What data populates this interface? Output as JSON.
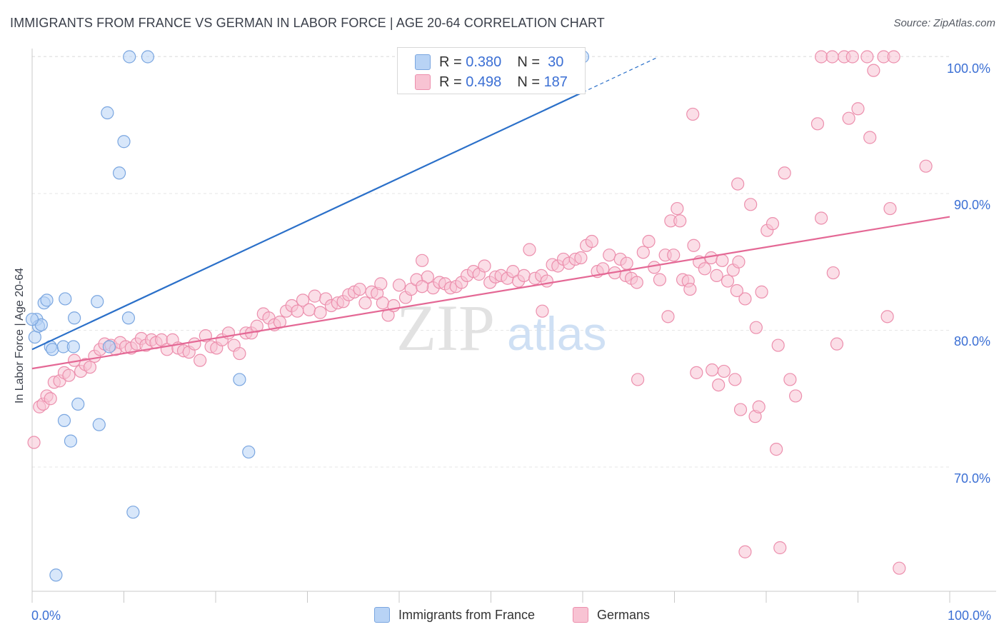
{
  "header": {
    "title": "IMMIGRANTS FROM FRANCE VS GERMAN IN LABOR FORCE | AGE 20-64 CORRELATION CHART",
    "source": "Source: ZipAtlas.com"
  },
  "watermark": {
    "zip": "ZIP",
    "atlas": "atlas"
  },
  "legend": {
    "r_label": "R =",
    "n_label": "N =",
    "series1": {
      "r": "0.380",
      "n": "30"
    },
    "series2": {
      "r": "0.498",
      "n": "187"
    }
  },
  "bottom_legend": {
    "series1": "Immigrants from France",
    "series2": "Germans"
  },
  "colors": {
    "france_fill": "#b8d3f5",
    "france_stroke": "#7aa6e0",
    "france_line": "#2b70c9",
    "german_fill": "#f8c3d3",
    "german_stroke": "#ec8fad",
    "german_line": "#e46895",
    "tick_label": "#3b6fd4",
    "grid": "#e6e6e6"
  },
  "chart_data": {
    "type": "scatter",
    "title": "IMMIGRANTS FROM FRANCE VS GERMAN IN LABOR FORCE | AGE 20-64 CORRELATION CHART",
    "xlabel": "",
    "ylabel": "In Labor Force | Age 20-64",
    "xlim": [
      0,
      100
    ],
    "ylim": [
      60.5,
      101.5
    ],
    "x_tick_labels": [
      "0.0%",
      "100.0%"
    ],
    "y_ticks": [
      70,
      80,
      90,
      100
    ],
    "y_tick_labels": [
      "70.0%",
      "80.0%",
      "90.0%",
      "100.0%"
    ],
    "grid": true,
    "legend_position": "top-center",
    "series": [
      {
        "name": "Immigrants from France",
        "r": 0.38,
        "n": 30,
        "trend": {
          "x0": 0,
          "y0": 78.6,
          "x1": 60,
          "y1": 97.4,
          "dashed_to_x": 68
        },
        "points": [
          [
            0.3,
            79.5
          ],
          [
            0.5,
            80.8
          ],
          [
            0.7,
            80.3
          ],
          [
            1.0,
            80.4
          ],
          [
            1.3,
            82.0
          ],
          [
            1.6,
            82.2
          ],
          [
            2.0,
            78.8
          ],
          [
            2.2,
            78.6
          ],
          [
            3.4,
            78.8
          ],
          [
            3.6,
            82.3
          ],
          [
            4.5,
            78.8
          ],
          [
            4.6,
            80.9
          ],
          [
            5.0,
            74.6
          ],
          [
            3.5,
            73.4
          ],
          [
            4.2,
            71.9
          ],
          [
            7.1,
            82.1
          ],
          [
            7.3,
            73.1
          ],
          [
            8.4,
            78.8
          ],
          [
            9.5,
            91.5
          ],
          [
            10.0,
            93.8
          ],
          [
            10.5,
            80.9
          ],
          [
            8.2,
            95.9
          ],
          [
            10.6,
            100.0
          ],
          [
            12.6,
            100.0
          ],
          [
            11.0,
            66.7
          ],
          [
            2.6,
            62.1
          ],
          [
            22.6,
            76.4
          ],
          [
            23.6,
            71.1
          ],
          [
            60.0,
            100.0
          ],
          [
            0.0,
            80.8
          ]
        ]
      },
      {
        "name": "Germans",
        "r": 0.498,
        "n": 187,
        "trend": {
          "x0": 0,
          "y0": 77.2,
          "x1": 100,
          "y1": 88.3
        },
        "points": [
          [
            0.2,
            71.8
          ],
          [
            0.8,
            74.4
          ],
          [
            1.2,
            74.6
          ],
          [
            1.6,
            75.2
          ],
          [
            2.0,
            75.0
          ],
          [
            2.4,
            76.2
          ],
          [
            3.0,
            76.3
          ],
          [
            3.5,
            76.9
          ],
          [
            4.0,
            76.7
          ],
          [
            4.6,
            77.8
          ],
          [
            5.3,
            77.0
          ],
          [
            5.8,
            77.5
          ],
          [
            6.3,
            77.3
          ],
          [
            6.8,
            78.1
          ],
          [
            7.4,
            78.6
          ],
          [
            7.9,
            79.0
          ],
          [
            8.6,
            78.9
          ],
          [
            9.1,
            78.6
          ],
          [
            9.6,
            79.1
          ],
          [
            10.2,
            78.8
          ],
          [
            10.8,
            78.7
          ],
          [
            11.4,
            79.0
          ],
          [
            11.9,
            79.4
          ],
          [
            12.4,
            78.9
          ],
          [
            13.0,
            79.3
          ],
          [
            13.5,
            79.1
          ],
          [
            14.1,
            79.3
          ],
          [
            14.7,
            78.6
          ],
          [
            15.3,
            79.3
          ],
          [
            15.9,
            78.7
          ],
          [
            16.5,
            78.5
          ],
          [
            17.1,
            78.4
          ],
          [
            17.7,
            79.0
          ],
          [
            18.3,
            77.8
          ],
          [
            18.9,
            79.6
          ],
          [
            19.5,
            78.8
          ],
          [
            20.1,
            78.7
          ],
          [
            20.7,
            79.3
          ],
          [
            21.4,
            79.8
          ],
          [
            22.0,
            78.9
          ],
          [
            22.6,
            78.3
          ],
          [
            23.3,
            79.8
          ],
          [
            23.9,
            79.8
          ],
          [
            24.5,
            80.3
          ],
          [
            25.2,
            81.2
          ],
          [
            25.8,
            80.9
          ],
          [
            26.4,
            80.4
          ],
          [
            27.0,
            80.6
          ],
          [
            27.7,
            81.4
          ],
          [
            28.3,
            81.8
          ],
          [
            28.9,
            81.4
          ],
          [
            29.5,
            82.2
          ],
          [
            30.2,
            81.5
          ],
          [
            30.8,
            82.5
          ],
          [
            31.4,
            81.3
          ],
          [
            32.0,
            82.3
          ],
          [
            32.6,
            81.8
          ],
          [
            33.3,
            82.0
          ],
          [
            33.9,
            82.1
          ],
          [
            34.5,
            82.6
          ],
          [
            35.1,
            82.8
          ],
          [
            35.7,
            83.0
          ],
          [
            36.3,
            82.0
          ],
          [
            37.0,
            82.8
          ],
          [
            37.6,
            82.7
          ],
          [
            38.2,
            82.0
          ],
          [
            38.8,
            81.1
          ],
          [
            39.4,
            81.8
          ],
          [
            40.0,
            83.3
          ],
          [
            40.7,
            82.4
          ],
          [
            41.3,
            83.0
          ],
          [
            41.9,
            83.7
          ],
          [
            42.5,
            85.1
          ],
          [
            43.1,
            83.9
          ],
          [
            43.7,
            83.1
          ],
          [
            44.4,
            83.5
          ],
          [
            45.0,
            83.4
          ],
          [
            45.6,
            83.1
          ],
          [
            46.2,
            83.2
          ],
          [
            46.8,
            83.5
          ],
          [
            47.4,
            84.0
          ],
          [
            48.1,
            84.3
          ],
          [
            48.7,
            84.1
          ],
          [
            49.3,
            84.7
          ],
          [
            49.9,
            83.5
          ],
          [
            50.5,
            83.9
          ],
          [
            51.1,
            84.0
          ],
          [
            51.8,
            83.8
          ],
          [
            52.4,
            84.3
          ],
          [
            53.0,
            83.6
          ],
          [
            53.6,
            84.0
          ],
          [
            54.2,
            85.9
          ],
          [
            54.8,
            83.8
          ],
          [
            55.5,
            84.0
          ],
          [
            56.1,
            83.6
          ],
          [
            56.7,
            84.8
          ],
          [
            57.3,
            84.7
          ],
          [
            57.9,
            85.2
          ],
          [
            58.5,
            84.9
          ],
          [
            59.2,
            85.2
          ],
          [
            59.8,
            85.3
          ],
          [
            60.4,
            86.2
          ],
          [
            61.0,
            86.5
          ],
          [
            61.6,
            84.3
          ],
          [
            62.2,
            84.5
          ],
          [
            62.9,
            85.5
          ],
          [
            63.5,
            84.2
          ],
          [
            64.1,
            85.2
          ],
          [
            64.7,
            84.0
          ],
          [
            65.3,
            83.8
          ],
          [
            65.9,
            83.5
          ],
          [
            66.6,
            85.7
          ],
          [
            67.2,
            86.5
          ],
          [
            67.8,
            84.6
          ],
          [
            68.4,
            83.7
          ],
          [
            69.0,
            85.5
          ],
          [
            69.6,
            88.0
          ],
          [
            70.3,
            88.9
          ],
          [
            70.9,
            83.7
          ],
          [
            71.5,
            83.6
          ],
          [
            72.1,
            86.2
          ],
          [
            72.7,
            85.0
          ],
          [
            73.3,
            84.5
          ],
          [
            74.0,
            85.3
          ],
          [
            74.6,
            84.0
          ],
          [
            75.2,
            85.1
          ],
          [
            75.8,
            83.6
          ],
          [
            76.4,
            84.4
          ],
          [
            77.0,
            85.0
          ],
          [
            77.7,
            82.3
          ],
          [
            78.3,
            89.2
          ],
          [
            78.9,
            80.2
          ],
          [
            79.5,
            82.8
          ],
          [
            80.1,
            87.3
          ],
          [
            80.7,
            87.8
          ],
          [
            81.3,
            78.9
          ],
          [
            82.0,
            91.5
          ],
          [
            82.6,
            76.4
          ],
          [
            83.2,
            75.2
          ],
          [
            74.1,
            77.1
          ],
          [
            74.8,
            76.0
          ],
          [
            75.4,
            77.0
          ],
          [
            72.4,
            76.9
          ],
          [
            71.7,
            83.0
          ],
          [
            76.6,
            76.4
          ],
          [
            72.0,
            95.8
          ],
          [
            76.9,
            90.7
          ],
          [
            77.2,
            74.2
          ],
          [
            78.8,
            73.7
          ],
          [
            79.2,
            74.4
          ],
          [
            81.1,
            71.3
          ],
          [
            77.7,
            63.8
          ],
          [
            81.5,
            64.1
          ],
          [
            76.8,
            82.9
          ],
          [
            69.3,
            81.0
          ],
          [
            66.0,
            76.4
          ],
          [
            86.0,
            88.2
          ],
          [
            87.3,
            84.2
          ],
          [
            87.7,
            79.0
          ],
          [
            85.6,
            95.1
          ],
          [
            89.0,
            95.5
          ],
          [
            90.0,
            96.2
          ],
          [
            91.3,
            94.1
          ],
          [
            91.7,
            99.0
          ],
          [
            88.5,
            100.0
          ],
          [
            91.0,
            100.0
          ],
          [
            92.8,
            100.0
          ],
          [
            93.9,
            100.0
          ],
          [
            86.0,
            100.0
          ],
          [
            87.2,
            100.0
          ],
          [
            89.4,
            100.0
          ],
          [
            93.5,
            88.9
          ],
          [
            97.4,
            92.0
          ],
          [
            93.2,
            81.0
          ],
          [
            94.5,
            62.6
          ],
          [
            69.9,
            85.5
          ],
          [
            70.6,
            88.0
          ],
          [
            55.6,
            81.4
          ],
          [
            42.5,
            83.2
          ],
          [
            38.0,
            83.4
          ],
          [
            64.8,
            84.9
          ]
        ]
      }
    ]
  }
}
